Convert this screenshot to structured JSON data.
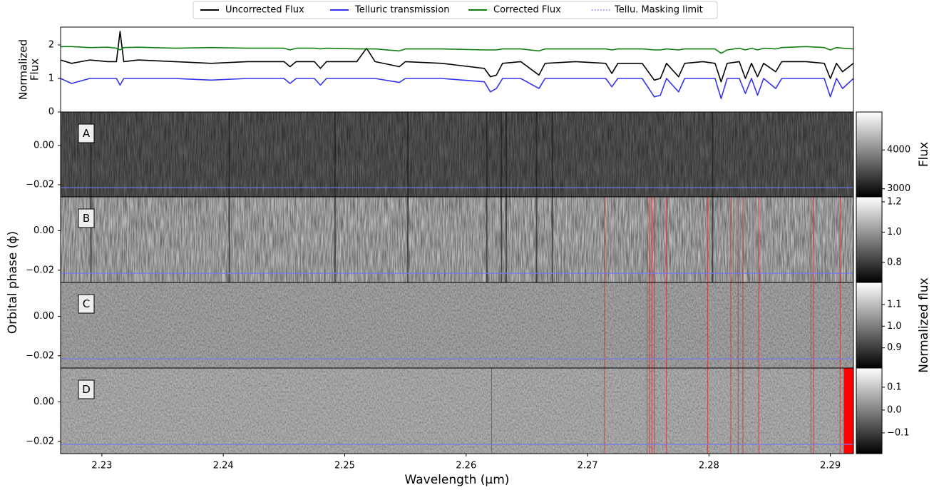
{
  "chart_data": [
    {
      "type": "line",
      "ylabel": [
        "Normalized",
        "Flux"
      ],
      "xlim": [
        2.2266,
        2.2919
      ],
      "ylim": [
        0,
        2.53
      ],
      "yticks": [
        0,
        1,
        2
      ],
      "x": [
        2.2266,
        2.2275,
        2.229,
        2.2305,
        2.2312,
        2.2315,
        2.2318,
        2.233,
        2.236,
        2.239,
        2.242,
        2.245,
        2.2455,
        2.246,
        2.2475,
        2.248,
        2.2485,
        2.251,
        2.2518,
        2.2525,
        2.2545,
        2.255,
        2.258,
        2.2615,
        2.262,
        2.2625,
        2.263,
        2.2645,
        2.266,
        2.2665,
        2.269,
        2.2715,
        2.272,
        2.2725,
        2.2745,
        2.2755,
        2.276,
        2.2765,
        2.2775,
        2.278,
        2.2795,
        2.2805,
        2.281,
        2.2815,
        2.2825,
        2.283,
        2.2835,
        2.284,
        2.2845,
        2.2855,
        2.286,
        2.288,
        2.2895,
        2.29,
        2.2905,
        2.291,
        2.2919
      ],
      "series": [
        {
          "name": "Uncorrected Flux",
          "color": "#000000",
          "values": [
            1.55,
            1.45,
            1.55,
            1.5,
            1.5,
            2.4,
            1.5,
            1.55,
            1.5,
            1.45,
            1.5,
            1.5,
            1.35,
            1.5,
            1.5,
            1.3,
            1.5,
            1.5,
            1.9,
            1.5,
            1.35,
            1.5,
            1.45,
            1.3,
            1.05,
            1.1,
            1.45,
            1.5,
            1.1,
            1.45,
            1.5,
            1.45,
            1.15,
            1.45,
            1.45,
            0.95,
            1.0,
            1.45,
            1.05,
            1.45,
            1.5,
            1.45,
            0.9,
            1.45,
            1.5,
            1.0,
            1.45,
            1.05,
            1.45,
            1.2,
            1.5,
            1.5,
            1.45,
            1.0,
            1.45,
            1.2,
            1.45
          ]
        },
        {
          "name": "Telluric transmission",
          "color": "#3333ee",
          "values": [
            1.0,
            0.85,
            1.0,
            1.0,
            1.0,
            0.8,
            1.0,
            1.0,
            1.0,
            0.95,
            1.0,
            1.0,
            0.85,
            1.0,
            1.0,
            0.8,
            1.0,
            1.0,
            1.0,
            1.0,
            0.88,
            1.0,
            1.0,
            0.9,
            0.6,
            0.7,
            1.0,
            1.0,
            0.7,
            1.0,
            1.0,
            1.0,
            0.75,
            1.0,
            1.0,
            0.45,
            0.5,
            1.0,
            0.6,
            1.0,
            1.0,
            1.0,
            0.4,
            1.0,
            1.0,
            0.55,
            1.0,
            0.5,
            1.0,
            0.7,
            1.0,
            1.0,
            1.0,
            0.45,
            1.0,
            0.7,
            1.0
          ]
        },
        {
          "name": "Corrected Flux",
          "color": "#108010",
          "values": [
            1.95,
            1.95,
            1.92,
            1.93,
            1.9,
            1.85,
            1.92,
            1.93,
            1.9,
            1.92,
            1.9,
            1.9,
            1.85,
            1.9,
            1.9,
            1.88,
            1.9,
            1.88,
            1.88,
            1.88,
            1.82,
            1.88,
            1.88,
            1.85,
            1.85,
            1.85,
            1.88,
            1.88,
            1.82,
            1.88,
            1.88,
            1.88,
            1.85,
            1.88,
            1.88,
            1.85,
            1.85,
            1.88,
            1.85,
            1.88,
            1.88,
            1.88,
            1.75,
            1.85,
            1.9,
            1.85,
            1.9,
            1.85,
            1.9,
            1.88,
            1.92,
            1.95,
            1.92,
            1.85,
            1.92,
            1.9,
            1.88
          ]
        }
      ],
      "masking_limit_label": "Tellu. Masking limit",
      "masking_limit_color": "#7777ee"
    },
    {
      "type": "heatmap",
      "label": "A",
      "ylabel": "Orbital phase (ϕ)",
      "xlim": [
        2.2266,
        2.2919
      ],
      "ylim": [
        -0.0262,
        0.0171
      ],
      "yticks": [
        {
          "value": 0,
          "label": "0.00"
        },
        {
          "value": -0.02,
          "label": "−0.02"
        }
      ],
      "masking_limit": -0.0215,
      "absorption_lines": [
        2.2291,
        2.2405,
        2.2492,
        2.2552,
        2.2617,
        2.2629,
        2.2633,
        2.2658,
        2.2671,
        2.2803
      ],
      "clim": [
        2791,
        4977
      ],
      "cticks": [
        3000,
        4000
      ],
      "colorbar_label": "Flux"
    },
    {
      "type": "heatmap",
      "label": "B",
      "xlim": [
        2.2266,
        2.2919
      ],
      "ylim": [
        -0.0262,
        0.0171
      ],
      "yticks": [
        {
          "value": 0,
          "label": "0.00"
        },
        {
          "value": -0.02,
          "label": "−0.02"
        }
      ],
      "masking_limit": -0.0215,
      "absorption_lines": [
        2.2291,
        2.2405,
        2.2492,
        2.2552,
        2.2617,
        2.2629,
        2.2633,
        2.2658,
        2.2671,
        2.2803
      ],
      "masked_wavelengths": [
        2.2714,
        2.2749,
        2.2751,
        2.2753,
        2.2755,
        2.2765,
        2.2799,
        2.2818,
        2.2824,
        2.2828,
        2.2841,
        2.2884,
        2.2886,
        2.2908
      ],
      "clim": [
        0.668,
        1.233
      ],
      "cticks": [
        0.8,
        {
          "value": 1,
          "label": "1.0"
        },
        1.2
      ],
      "colorbar_label": "Normalized flux"
    },
    {
      "type": "heatmap",
      "label": "C",
      "xlim": [
        2.2266,
        2.2919
      ],
      "ylim": [
        -0.0262,
        0.0171
      ],
      "yticks": [
        {
          "value": 0,
          "label": "0.00"
        },
        {
          "value": -0.02,
          "label": "−0.02"
        }
      ],
      "masking_limit": -0.0215,
      "masked_wavelengths": [
        2.2714,
        2.2749,
        2.2751,
        2.2753,
        2.2755,
        2.2765,
        2.2799,
        2.2818,
        2.2824,
        2.2828,
        2.2841,
        2.2884,
        2.2886,
        2.2908
      ],
      "clim": [
        0.807,
        1.2016
      ],
      "cticks": [
        0.9,
        {
          "value": 1,
          "label": "1.0"
        },
        1.1
      ]
    },
    {
      "type": "heatmap",
      "label": "D",
      "xlabel": "Wavelength (μm)",
      "xlim": [
        2.2266,
        2.2919
      ],
      "ylim": [
        -0.0262,
        0.0171
      ],
      "xticks": [
        2.23,
        2.24,
        2.25,
        2.26,
        2.27,
        2.28,
        2.29
      ],
      "yticks": [
        {
          "value": 0,
          "label": "0.00"
        },
        {
          "value": -0.02,
          "label": "−0.02"
        }
      ],
      "masking_limit": -0.0215,
      "masked_wavelengths": [
        2.2621,
        2.2714,
        2.2749,
        2.2751,
        2.2753,
        2.2755,
        2.2765,
        2.2799,
        2.2818,
        2.2824,
        2.2828,
        2.2841,
        2.2884,
        2.2886,
        2.2908
      ],
      "masked_band": [
        2.2911,
        2.2919
      ],
      "clim": [
        -0.191,
        0.184
      ],
      "cticks": [
        {
          "value": -0.1,
          "label": "−0.1"
        },
        {
          "value": 0,
          "label": "0.0"
        },
        0.1
      ]
    }
  ]
}
